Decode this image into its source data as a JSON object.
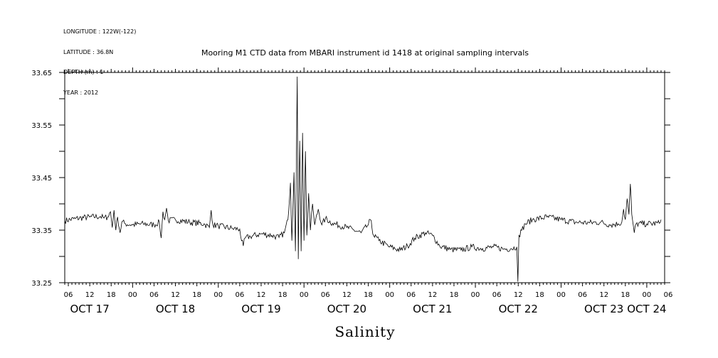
{
  "metadata": [
    "LONGITUDE : 122W(-122)",
    "LATITUDE : 36.8N",
    "DEPTH (m) : 1",
    "YEAR : 2012"
  ],
  "chart_data": {
    "type": "line",
    "title": "Mooring M1 CTD data from MBARI instrument id 1418 at original sampling intervals",
    "xlabel": "Salinity",
    "ylabel": "",
    "ylim": [
      33.25,
      33.65
    ],
    "y_ticks": [
      "33.25",
      "33.35",
      "33.45",
      "33.55",
      "33.65"
    ],
    "x_hour_ticks": [
      "06",
      "12",
      "18",
      "00",
      "06",
      "12",
      "18",
      "00",
      "06",
      "12",
      "18",
      "00",
      "06",
      "12",
      "18",
      "00",
      "06",
      "12",
      "18",
      "00",
      "06",
      "12",
      "18",
      "00",
      "06",
      "12",
      "18",
      "00",
      "06"
    ],
    "x_day_labels": [
      {
        "label": "OCT 17",
        "hour": 12
      },
      {
        "label": "OCT 18",
        "hour": 36
      },
      {
        "label": "OCT 19",
        "hour": 60
      },
      {
        "label": "OCT 20",
        "hour": 84
      },
      {
        "label": "OCT 21",
        "hour": 108
      },
      {
        "label": "OCT 22",
        "hour": 132
      },
      {
        "label": "OCT 23",
        "hour": 156
      },
      {
        "label": "OCT 24",
        "hour": 168
      }
    ],
    "x_unit": "hours since 2012-10-17 00:00",
    "x_range_hours": [
      5,
      173
    ],
    "series": [
      {
        "values": [
          [
            5,
            33.368
          ],
          [
            8,
            33.372
          ],
          [
            12,
            33.375
          ],
          [
            15,
            33.376
          ],
          [
            16,
            33.373
          ],
          [
            17,
            33.375
          ],
          [
            17.8,
            33.385
          ],
          [
            18.3,
            33.355
          ],
          [
            18.8,
            33.388
          ],
          [
            19.3,
            33.35
          ],
          [
            19.8,
            33.375
          ],
          [
            20.5,
            33.345
          ],
          [
            21,
            33.366
          ],
          [
            22,
            33.362
          ],
          [
            24,
            33.36
          ],
          [
            27,
            33.362
          ],
          [
            30,
            33.36
          ],
          [
            31.5,
            33.365
          ],
          [
            32,
            33.335
          ],
          [
            32.5,
            33.385
          ],
          [
            33,
            33.37
          ],
          [
            33.5,
            33.392
          ],
          [
            34,
            33.368
          ],
          [
            36,
            33.37
          ],
          [
            40,
            33.365
          ],
          [
            44,
            33.362
          ],
          [
            45.5,
            33.355
          ],
          [
            46,
            33.388
          ],
          [
            46.5,
            33.36
          ],
          [
            48,
            33.358
          ],
          [
            52,
            33.353
          ],
          [
            54,
            33.352
          ],
          [
            54.5,
            33.33
          ],
          [
            55,
            33.32
          ],
          [
            55.5,
            33.335
          ],
          [
            57,
            33.338
          ],
          [
            60,
            33.343
          ],
          [
            63,
            33.34
          ],
          [
            65,
            33.336
          ],
          [
            66.5,
            33.345
          ],
          [
            67.5,
            33.37
          ],
          [
            68.2,
            33.44
          ],
          [
            68.6,
            33.33
          ],
          [
            69.2,
            33.46
          ],
          [
            69.6,
            33.31
          ],
          [
            70.1,
            33.642
          ],
          [
            70.4,
            33.295
          ],
          [
            70.8,
            33.52
          ],
          [
            71.2,
            33.31
          ],
          [
            71.6,
            33.535
          ],
          [
            72,
            33.33
          ],
          [
            72.4,
            33.5
          ],
          [
            72.8,
            33.34
          ],
          [
            73.3,
            33.42
          ],
          [
            73.8,
            33.35
          ],
          [
            74.4,
            33.4
          ],
          [
            75,
            33.36
          ],
          [
            76,
            33.39
          ],
          [
            77,
            33.36
          ],
          [
            78,
            33.372
          ],
          [
            80,
            33.363
          ],
          [
            84,
            33.355
          ],
          [
            86,
            33.35
          ],
          [
            88,
            33.345
          ],
          [
            90,
            33.36
          ],
          [
            90.6,
            33.37
          ],
          [
            91.5,
            33.34
          ],
          [
            93,
            33.33
          ],
          [
            96,
            33.318
          ],
          [
            99,
            33.312
          ],
          [
            101,
            33.32
          ],
          [
            103,
            33.335
          ],
          [
            106,
            33.345
          ],
          [
            108,
            33.34
          ],
          [
            110,
            33.32
          ],
          [
            113,
            33.313
          ],
          [
            116,
            33.312
          ],
          [
            119,
            33.318
          ],
          [
            122,
            33.315
          ],
          [
            125,
            33.318
          ],
          [
            128,
            33.314
          ],
          [
            130,
            33.315
          ],
          [
            131.6,
            33.318
          ],
          [
            131.9,
            33.252
          ],
          [
            132.2,
            33.34
          ],
          [
            133,
            33.35
          ],
          [
            134,
            33.362
          ],
          [
            136,
            33.37
          ],
          [
            140,
            33.375
          ],
          [
            144,
            33.37
          ],
          [
            148,
            33.365
          ],
          [
            152,
            33.364
          ],
          [
            155,
            33.365
          ],
          [
            158,
            33.36
          ],
          [
            160,
            33.362
          ],
          [
            161,
            33.365
          ],
          [
            161.5,
            33.39
          ],
          [
            162,
            33.37
          ],
          [
            162.5,
            33.41
          ],
          [
            163,
            33.38
          ],
          [
            163.4,
            33.438
          ],
          [
            163.8,
            33.38
          ],
          [
            164.2,
            33.36
          ],
          [
            164.5,
            33.345
          ],
          [
            165,
            33.362
          ],
          [
            168,
            33.362
          ],
          [
            171.5,
            33.363
          ],
          [
            172,
            33.37
          ]
        ]
      }
    ]
  }
}
